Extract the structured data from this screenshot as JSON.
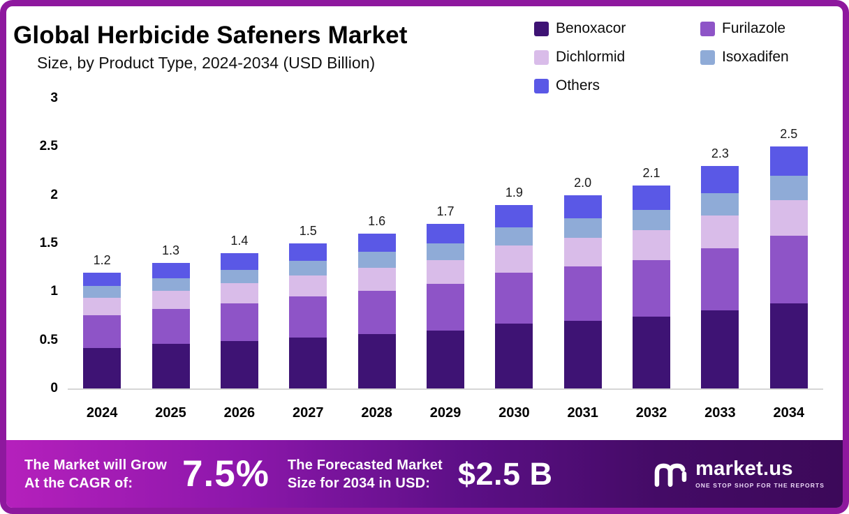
{
  "header": {
    "title": "Global Herbicide Safeners Market",
    "subtitle": "Size, by Product Type, 2024-2034 (USD Billion)"
  },
  "legend": [
    {
      "label": "Benoxacor",
      "color": "#3e1374"
    },
    {
      "label": "Furilazole",
      "color": "#8e54c7"
    },
    {
      "label": "Dichlormid",
      "color": "#d9bce9"
    },
    {
      "label": "Isoxadifen",
      "color": "#8fabd7"
    },
    {
      "label": "Others",
      "color": "#5a58e6"
    }
  ],
  "chart_data": {
    "type": "bar",
    "stacked": true,
    "title": "Global Herbicide Safeners Market Size, by Product Type, 2024-2034 (USD Billion)",
    "categories": [
      "2024",
      "2025",
      "2026",
      "2027",
      "2028",
      "2029",
      "2030",
      "2031",
      "2032",
      "2033",
      "2034"
    ],
    "totals": [
      1.2,
      1.3,
      1.4,
      1.5,
      1.6,
      1.7,
      1.9,
      2.0,
      2.1,
      2.3,
      2.5
    ],
    "totals_labels": [
      "1.2",
      "1.3",
      "1.4",
      "1.5",
      "1.6",
      "1.7",
      "1.9",
      "2.0",
      "2.1",
      "2.3",
      "2.5"
    ],
    "series": [
      {
        "name": "Benoxacor",
        "values": [
          0.42,
          0.46,
          0.49,
          0.53,
          0.56,
          0.6,
          0.67,
          0.7,
          0.74,
          0.81,
          0.88
        ]
      },
      {
        "name": "Furilazole",
        "values": [
          0.34,
          0.36,
          0.39,
          0.42,
          0.45,
          0.48,
          0.53,
          0.56,
          0.59,
          0.64,
          0.7
        ]
      },
      {
        "name": "Dichlormid",
        "values": [
          0.18,
          0.19,
          0.21,
          0.22,
          0.24,
          0.25,
          0.28,
          0.3,
          0.31,
          0.34,
          0.37
        ]
      },
      {
        "name": "Isoxadifen",
        "values": [
          0.12,
          0.13,
          0.14,
          0.15,
          0.16,
          0.17,
          0.19,
          0.2,
          0.21,
          0.23,
          0.25
        ]
      },
      {
        "name": "Others",
        "values": [
          0.14,
          0.16,
          0.17,
          0.18,
          0.19,
          0.2,
          0.23,
          0.24,
          0.25,
          0.28,
          0.3
        ]
      }
    ],
    "xlabel": "",
    "ylabel": "",
    "ylim": [
      0,
      3
    ],
    "yticks": [
      0,
      0.5,
      1,
      1.5,
      2,
      2.5,
      3
    ],
    "grid": false,
    "legend_position": "top-right"
  },
  "footer": {
    "cagr_label_line1": "The Market will Grow",
    "cagr_label_line2": "At the CAGR of:",
    "cagr_value": "7.5%",
    "forecast_label_line1": "The Forecasted Market",
    "forecast_label_line2": "Size for 2034 in USD:",
    "forecast_value": "$2.5 B",
    "brand": "market.us",
    "brand_tagline": "ONE STOP SHOP FOR THE REPORTS"
  },
  "colors": {
    "frame_border": "#8e189e",
    "banner_gradient_start": "#b520bc",
    "banner_gradient_end": "#3c0959",
    "axis_line": "#d6d6d6"
  }
}
